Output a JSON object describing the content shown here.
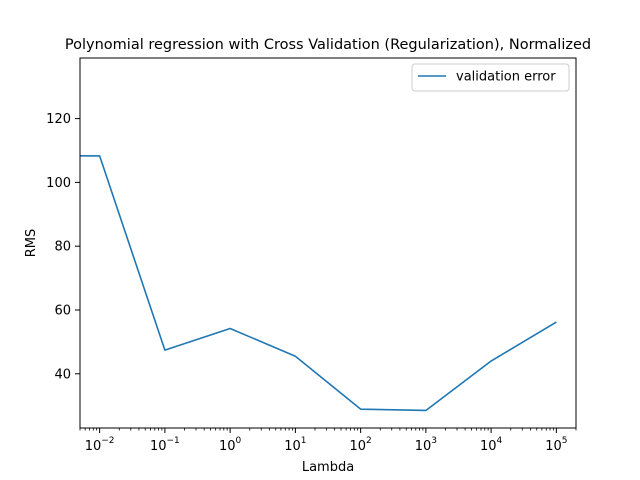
{
  "chart_data": {
    "type": "line",
    "title": "Polynomial regression with Cross Validation (Regularization), Normalized",
    "xlabel": "Lambda",
    "ylabel": "RMS",
    "x_scale": "log",
    "xlim": [
      0.005,
      200000
    ],
    "ylim": [
      23,
      139
    ],
    "x_ticks": [
      {
        "value": 0.01,
        "base": "10",
        "exp": "−2"
      },
      {
        "value": 0.1,
        "base": "10",
        "exp": "−1"
      },
      {
        "value": 1,
        "base": "10",
        "exp": "0"
      },
      {
        "value": 10,
        "base": "10",
        "exp": "1"
      },
      {
        "value": 100,
        "base": "10",
        "exp": "2"
      },
      {
        "value": 1000,
        "base": "10",
        "exp": "3"
      },
      {
        "value": 10000,
        "base": "10",
        "exp": "4"
      },
      {
        "value": 100000,
        "base": "10",
        "exp": "5"
      }
    ],
    "y_ticks": [
      "40",
      "60",
      "80",
      "100",
      "120"
    ],
    "grid": false,
    "legend_position": "top-right",
    "series": [
      {
        "name": "validation error",
        "color": "#1f77b4",
        "x": [
          0.001,
          0.01,
          0.1,
          1,
          10,
          100,
          1000,
          10000,
          100000
        ],
        "y": [
          108.4,
          108.3,
          47.4,
          54.2,
          45.5,
          28.9,
          28.5,
          44.0,
          56.2
        ]
      }
    ]
  }
}
